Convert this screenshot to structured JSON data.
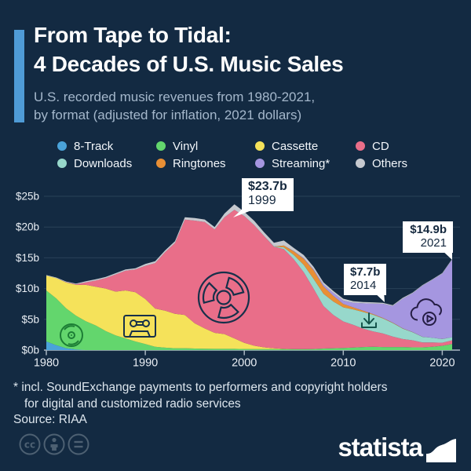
{
  "header": {
    "title_line1": "From Tape to Tidal:",
    "title_line2": "4 Decades of U.S. Music Sales",
    "subtitle_line1": "U.S. recorded music revenues from 1980-2021,",
    "subtitle_line2": "by format (adjusted for inflation, 2021 dollars)",
    "accent_color": "#4f9bd6"
  },
  "chart_data": {
    "type": "area",
    "stacked": true,
    "x_start": 1980,
    "x_end": 2021,
    "x": [
      1980,
      1981,
      1982,
      1983,
      1984,
      1985,
      1986,
      1987,
      1988,
      1989,
      1990,
      1991,
      1992,
      1993,
      1994,
      1995,
      1996,
      1997,
      1998,
      1999,
      2000,
      2001,
      2002,
      2003,
      2004,
      2005,
      2006,
      2007,
      2008,
      2009,
      2010,
      2011,
      2012,
      2013,
      2014,
      2015,
      2016,
      2017,
      2018,
      2019,
      2020,
      2021
    ],
    "series": [
      {
        "name": "8-Track",
        "color": "#4aa3da",
        "values": [
          1.4,
          0.8,
          0.3,
          0.1,
          0,
          0,
          0,
          0,
          0,
          0,
          0,
          0,
          0,
          0,
          0,
          0,
          0,
          0,
          0,
          0,
          0,
          0,
          0,
          0,
          0,
          0,
          0,
          0,
          0,
          0,
          0,
          0,
          0,
          0,
          0,
          0,
          0,
          0,
          0,
          0,
          0,
          0
        ]
      },
      {
        "name": "Vinyl",
        "color": "#63d66d",
        "values": [
          8.3,
          7.6,
          6.5,
          5.5,
          4.7,
          4.0,
          3.1,
          2.4,
          1.9,
          1.4,
          1.0,
          0.55,
          0.4,
          0.3,
          0.3,
          0.25,
          0.22,
          0.2,
          0.2,
          0.2,
          0.18,
          0.16,
          0.15,
          0.15,
          0.15,
          0.15,
          0.15,
          0.18,
          0.25,
          0.3,
          0.35,
          0.42,
          0.5,
          0.55,
          0.5,
          0.5,
          0.5,
          0.45,
          0.45,
          0.55,
          0.7,
          1.0
        ]
      },
      {
        "name": "Cassette",
        "color": "#f5e25a",
        "values": [
          2.4,
          3.3,
          4.2,
          5.0,
          5.9,
          6.3,
          6.9,
          7.1,
          7.8,
          8.0,
          7.3,
          6.2,
          6.0,
          5.6,
          5.4,
          4.1,
          3.3,
          2.6,
          2.4,
          1.7,
          1.0,
          0.55,
          0.3,
          0.15,
          0.05,
          0,
          0,
          0,
          0,
          0,
          0,
          0,
          0,
          0,
          0,
          0,
          0,
          0,
          0,
          0,
          0,
          0
        ]
      },
      {
        "name": "CD",
        "color": "#e96e89",
        "values": [
          0,
          0,
          0.05,
          0.1,
          0.4,
          1.0,
          1.7,
          2.8,
          3.2,
          3.7,
          5.4,
          7.4,
          9.5,
          11.5,
          15.5,
          16.7,
          17.3,
          16.8,
          19.0,
          20.9,
          20.6,
          19.6,
          18.1,
          16.5,
          16.2,
          14.6,
          12.5,
          9.8,
          6.9,
          5.4,
          4.3,
          3.7,
          3.0,
          2.5,
          2.2,
          1.7,
          1.3,
          1.15,
          0.8,
          0.7,
          0.5,
          0.6
        ]
      },
      {
        "name": "Downloads",
        "color": "#97d8cb",
        "values": [
          0,
          0,
          0,
          0,
          0,
          0,
          0,
          0,
          0,
          0,
          0,
          0,
          0,
          0,
          0,
          0,
          0,
          0,
          0,
          0,
          0,
          0,
          0,
          0.05,
          0.3,
          0.7,
          1.2,
          1.6,
          2.0,
          2.2,
          2.3,
          2.5,
          2.7,
          2.7,
          2.45,
          2.2,
          1.7,
          1.3,
          0.9,
          0.75,
          0.6,
          0.5
        ]
      },
      {
        "name": "Ringtones",
        "color": "#e88f35",
        "values": [
          0,
          0,
          0,
          0,
          0,
          0,
          0,
          0,
          0,
          0,
          0,
          0,
          0,
          0,
          0,
          0,
          0,
          0,
          0,
          0,
          0,
          0,
          0,
          0,
          0.3,
          0.6,
          1.0,
          1.4,
          1.2,
          0.9,
          0.55,
          0.33,
          0.2,
          0.12,
          0.08,
          0.06,
          0.04,
          0.03,
          0.02,
          0.02,
          0.01,
          0.01
        ]
      },
      {
        "name": "Streaming*",
        "color": "#a596e0",
        "values": [
          0,
          0,
          0,
          0,
          0,
          0,
          0,
          0,
          0,
          0,
          0,
          0,
          0,
          0,
          0,
          0,
          0,
          0,
          0,
          0,
          0,
          0,
          0,
          0,
          0,
          0.05,
          0.1,
          0.15,
          0.3,
          0.5,
          0.55,
          0.75,
          1.2,
          1.7,
          2.3,
          2.7,
          4.8,
          6.3,
          8.3,
          9.4,
          10.6,
          12.6
        ]
      },
      {
        "name": "Others",
        "color": "#c6c9cf",
        "values": [
          0.1,
          0.1,
          0.1,
          0.1,
          0.2,
          0.2,
          0.2,
          0.2,
          0.2,
          0.2,
          0.3,
          0.3,
          0.3,
          0.3,
          0.4,
          0.4,
          0.4,
          0.4,
          0.6,
          0.9,
          0.7,
          0.7,
          0.6,
          0.6,
          0.8,
          0.5,
          0.5,
          0.4,
          0.35,
          0.3,
          0.3,
          0.25,
          0.2,
          0.2,
          0.15,
          0.15,
          0.15,
          0.12,
          0.1,
          0.1,
          0.1,
          0.1
        ]
      }
    ],
    "ylim": [
      0,
      25
    ],
    "yticks": [
      "$0b",
      "$5b",
      "$10b",
      "$15b",
      "$20b",
      "$25b"
    ],
    "xticks": [
      "1980",
      "1990",
      "2000",
      "2010",
      "2020"
    ],
    "grid": true,
    "legend_position": "top",
    "annotations": [
      {
        "value": "$23.7b",
        "year": "1999"
      },
      {
        "value": "$7.7b",
        "year": "2014"
      },
      {
        "value": "$14.9b",
        "year": "2021"
      }
    ]
  },
  "footer": {
    "footnote_line1": "* incl. SoundExchange payments to performers and copyright holders",
    "footnote_line2": "for digital and customized radio services",
    "source": "Source: RIAA",
    "brand": "statista"
  },
  "colors": {
    "background": "#132a42",
    "grid": "#2a4158",
    "axis": "#a9b6c1",
    "axis_text": "#e9eef4",
    "callout_bg": "#ffffff",
    "callout_text": "#14283e"
  }
}
